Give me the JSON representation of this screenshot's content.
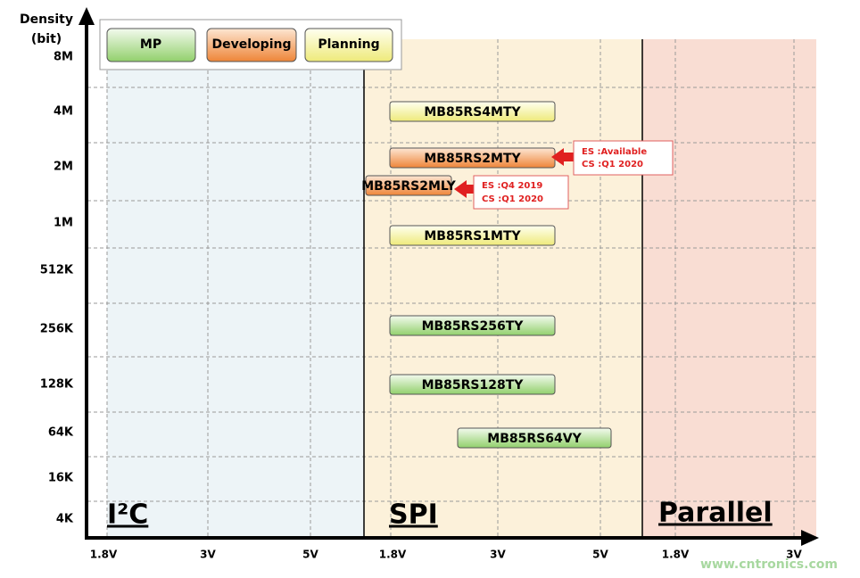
{
  "axis": {
    "title_line1": "Density",
    "title_line2": "(bit)",
    "y_labels": [
      "8M",
      "4M",
      "2M",
      "1M",
      "512K",
      "256K",
      "128K",
      "64K",
      "16K",
      "4K"
    ],
    "x_labels": [
      "1.8V",
      "3V",
      "5V",
      "1.8V",
      "3V",
      "5V",
      "1.8V",
      "3V"
    ]
  },
  "legend": [
    "MP",
    "Developing",
    "Planning"
  ],
  "sections": [
    "I²C",
    "SPI",
    "Parallel"
  ],
  "products": [
    "MB85RS4MTY",
    "MB85RS2MTY",
    "MB85RS2MLY",
    "MB85RS1MTY",
    "MB85RS256TY",
    "MB85RS128TY",
    "MB85RS64VY"
  ],
  "callouts": [
    [
      "ES :Available",
      "CS :Q1 2020"
    ],
    [
      "ES :Q4 2019",
      "CS :Q1 2020"
    ]
  ],
  "watermark": "www.cntronics.com"
}
